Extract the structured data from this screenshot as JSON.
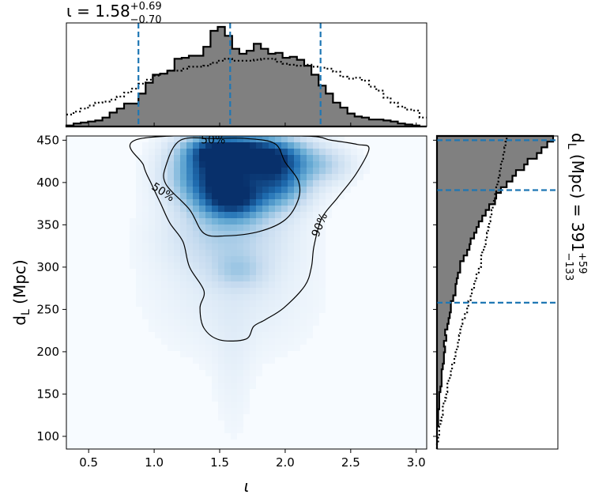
{
  "chart_data": [
    {
      "type": "heatmap",
      "panel": "joint",
      "xlabel": "ι",
      "ylabel": "d_L (Mpc)",
      "xlim": [
        0.33,
        3.08
      ],
      "ylim": [
        85,
        455
      ],
      "xticks": [
        "0.5",
        "1.0",
        "1.5",
        "2.0",
        "2.5",
        "3.0"
      ],
      "yticks": [
        "100",
        "150",
        "200",
        "250",
        "300",
        "350",
        "400",
        "450"
      ],
      "colormap": "Blues",
      "density_blobs": [
        {
          "x": 1.8,
          "y": 432,
          "sx": 0.22,
          "sy": 14,
          "w": 1.0
        },
        {
          "x": 1.48,
          "y": 438,
          "sx": 0.16,
          "sy": 12,
          "w": 0.75
        },
        {
          "x": 1.6,
          "y": 380,
          "sx": 0.16,
          "sy": 16,
          "w": 0.9
        },
        {
          "x": 1.42,
          "y": 408,
          "sx": 0.18,
          "sy": 22,
          "w": 0.7
        },
        {
          "x": 1.95,
          "y": 402,
          "sx": 0.15,
          "sy": 20,
          "w": 0.65
        },
        {
          "x": 1.65,
          "y": 415,
          "sx": 0.3,
          "sy": 30,
          "w": 0.5
        },
        {
          "x": 1.55,
          "y": 340,
          "sx": 0.3,
          "sy": 30,
          "w": 0.28
        },
        {
          "x": 1.65,
          "y": 295,
          "sx": 0.14,
          "sy": 14,
          "w": 0.2
        },
        {
          "x": 2.28,
          "y": 420,
          "sx": 0.16,
          "sy": 14,
          "w": 0.25
        },
        {
          "x": 1.6,
          "y": 270,
          "sx": 0.4,
          "sy": 50,
          "w": 0.1
        },
        {
          "x": 1.6,
          "y": 180,
          "sx": 0.1,
          "sy": 60,
          "w": 0.05
        }
      ],
      "contours": [
        {
          "label": "50%",
          "points": [
            [
              1.2,
              450
            ],
            [
              1.09,
              420
            ],
            [
              1.09,
              398
            ],
            [
              1.27,
              368
            ],
            [
              1.38,
              340
            ],
            [
              1.55,
              337
            ],
            [
              1.8,
              342
            ],
            [
              2.0,
              356
            ],
            [
              2.1,
              380
            ],
            [
              2.1,
              402
            ],
            [
              2.0,
              424
            ],
            [
              1.92,
              446
            ],
            [
              1.7,
              452
            ],
            [
              1.47,
              452
            ]
          ]
        },
        {
          "label": "90%",
          "points": [
            [
              0.9,
              452
            ],
            [
              0.92,
              420
            ],
            [
              0.98,
              398
            ],
            [
              1.05,
              375
            ],
            [
              1.12,
              352
            ],
            [
              1.22,
              330
            ],
            [
              1.27,
              300
            ],
            [
              1.38,
              272
            ],
            [
              1.35,
              252
            ],
            [
              1.38,
              228
            ],
            [
              1.5,
              214
            ],
            [
              1.7,
              215
            ],
            [
              1.76,
              230
            ],
            [
              1.85,
              238
            ],
            [
              1.99,
              252
            ],
            [
              2.15,
              278
            ],
            [
              2.2,
              300
            ],
            [
              2.22,
              325
            ],
            [
              2.28,
              358
            ],
            [
              2.4,
              382
            ],
            [
              2.54,
              410
            ],
            [
              2.64,
              440
            ],
            [
              2.55,
              445
            ],
            [
              2.35,
              450
            ],
            [
              2.1,
              455
            ]
          ]
        }
      ],
      "contour_labels": [
        {
          "text": "50%",
          "x": 1.45,
          "y": 451,
          "angle": 0
        },
        {
          "text": "50%",
          "x": 1.07,
          "y": 389,
          "angle": 33
        },
        {
          "text": "90%",
          "x": 2.26,
          "y": 350,
          "angle": -68
        }
      ]
    },
    {
      "type": "area",
      "panel": "top-marginal",
      "title_main": "ι = 1.58",
      "title_sup": "+0.69",
      "title_sub": "−0.70",
      "bin_edges": [
        0.33,
        3.08
      ],
      "posterior_heights": [
        0.01,
        0.03,
        0.04,
        0.05,
        0.06,
        0.09,
        0.14,
        0.18,
        0.23,
        0.23,
        0.33,
        0.44,
        0.52,
        0.53,
        0.56,
        0.68,
        0.69,
        0.71,
        0.71,
        0.8,
        0.96,
        1.0,
        0.91,
        0.78,
        0.73,
        0.76,
        0.83,
        0.78,
        0.73,
        0.74,
        0.69,
        0.7,
        0.67,
        0.61,
        0.52,
        0.41,
        0.33,
        0.24,
        0.19,
        0.13,
        0.1,
        0.09,
        0.07,
        0.07,
        0.06,
        0.05,
        0.03,
        0.02,
        0.01,
        0.0
      ],
      "prior_heights": [
        0.12,
        0.15,
        0.18,
        0.21,
        0.24,
        0.25,
        0.27,
        0.3,
        0.34,
        0.38,
        0.43,
        0.47,
        0.51,
        0.53,
        0.56,
        0.56,
        0.58,
        0.6,
        0.6,
        0.61,
        0.64,
        0.66,
        0.68,
        0.66,
        0.66,
        0.66,
        0.67,
        0.68,
        0.68,
        0.65,
        0.63,
        0.62,
        0.61,
        0.62,
        0.6,
        0.59,
        0.58,
        0.55,
        0.5,
        0.48,
        0.49,
        0.46,
        0.4,
        0.36,
        0.29,
        0.24,
        0.2,
        0.17,
        0.16,
        0.09
      ],
      "dashed_lines": [
        0.88,
        1.58,
        2.27
      ],
      "line_color": "#1f77b4",
      "fill_color": "#808080"
    },
    {
      "type": "area",
      "panel": "right-marginal",
      "side_label_main": "d_L (Mpc) = 391",
      "side_label_sup": "+59",
      "side_label_sub": "−133",
      "bin_edges": [
        85,
        455
      ],
      "posterior_heights": [
        0.0,
        0.0,
        0.0,
        0.0,
        0.01,
        0.01,
        0.01,
        0.02,
        0.02,
        0.02,
        0.03,
        0.04,
        0.04,
        0.04,
        0.05,
        0.06,
        0.06,
        0.07,
        0.06,
        0.08,
        0.07,
        0.09,
        0.1,
        0.11,
        0.12,
        0.12,
        0.14,
        0.16,
        0.16,
        0.17,
        0.18,
        0.2,
        0.2,
        0.23,
        0.26,
        0.28,
        0.29,
        0.32,
        0.34,
        0.36,
        0.39,
        0.42,
        0.45,
        0.5,
        0.51,
        0.55,
        0.6,
        0.65,
        0.68,
        0.75,
        0.78,
        0.86,
        0.9,
        0.95,
        1.0
      ],
      "prior_heights": [
        0.0,
        0.01,
        0.02,
        0.02,
        0.03,
        0.04,
        0.05,
        0.05,
        0.07,
        0.08,
        0.09,
        0.09,
        0.11,
        0.12,
        0.13,
        0.15,
        0.16,
        0.17,
        0.18,
        0.19,
        0.2,
        0.21,
        0.22,
        0.24,
        0.26,
        0.27,
        0.29,
        0.3,
        0.32,
        0.33,
        0.34,
        0.36,
        0.38,
        0.38,
        0.39,
        0.41,
        0.42,
        0.43,
        0.44,
        0.45,
        0.46,
        0.47,
        0.48,
        0.49,
        0.5,
        0.51,
        0.52,
        0.53,
        0.54,
        0.55,
        0.56,
        0.57,
        0.58,
        0.59,
        0.6
      ],
      "dashed_lines": [
        258,
        391,
        450
      ],
      "line_color": "#1f77b4",
      "fill_color": "#808080"
    }
  ]
}
